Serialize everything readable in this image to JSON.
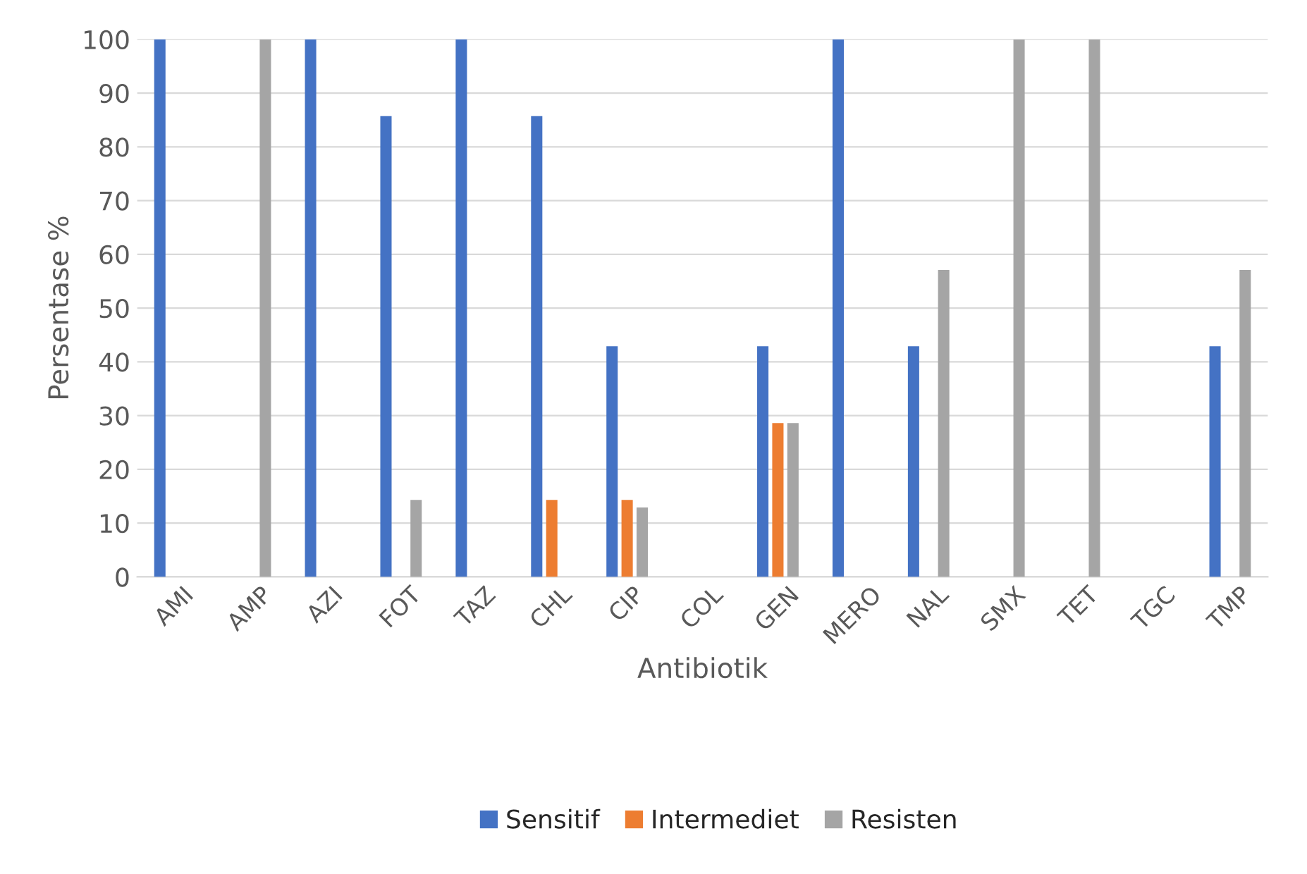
{
  "chart_data": {
    "type": "bar",
    "xlabel": "Antibiotik",
    "ylabel": "Persentase %",
    "categories": [
      "AMI",
      "AMP",
      "AZI",
      "FOT",
      "TAZ",
      "CHL",
      "CIP",
      "COL",
      "GEN",
      "MERO",
      "NAL",
      "SMX",
      "TET",
      "TGC",
      "TMP"
    ],
    "series": [
      {
        "name": "Sensitif",
        "color": "#4472c4",
        "values": [
          100,
          0,
          100,
          85.7,
          100,
          85.7,
          42.9,
          0,
          42.9,
          100,
          42.9,
          0,
          0,
          0,
          42.9
        ]
      },
      {
        "name": "Intermediet",
        "color": "#ed7d31",
        "values": [
          0,
          0,
          0,
          0,
          0,
          14.3,
          14.3,
          0,
          28.6,
          0,
          0,
          0,
          0,
          0,
          0
        ]
      },
      {
        "name": "Resisten",
        "color": "#a5a5a5",
        "values": [
          0,
          100,
          0,
          14.3,
          0,
          0,
          12.9,
          0,
          28.6,
          0,
          57.1,
          100,
          100,
          0,
          57.1
        ]
      }
    ],
    "ylim": [
      0,
      100
    ],
    "yticks": [
      0,
      10,
      20,
      30,
      40,
      50,
      60,
      70,
      80,
      90,
      100
    ],
    "grid": "y",
    "legend": "bottom"
  }
}
